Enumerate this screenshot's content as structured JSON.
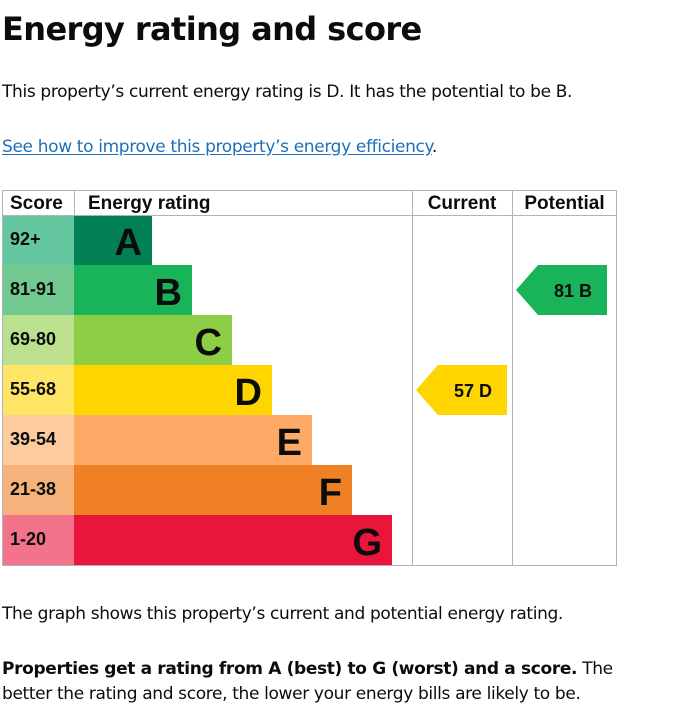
{
  "heading": "Energy rating and score",
  "intro": "This property’s current energy rating is D. It has the potential to be B.",
  "improve_link": "See how to improve this property’s energy efficiency",
  "improve_link_suffix": ".",
  "graph_note": "The graph shows this property’s current and potential energy rating.",
  "ratings_bold": "Properties get a rating from A (best) to G (worst) and a score.",
  "ratings_rest": " The better the rating and score, the lower your energy bills are likely to be.",
  "chart_data": {
    "type": "bar",
    "headers": {
      "score": "Score",
      "rating": "Energy rating",
      "current": "Current",
      "potential": "Potential"
    },
    "bands": [
      {
        "letter": "A",
        "range": "92+",
        "color": "#008054",
        "score_bg": "#64c7a0"
      },
      {
        "letter": "B",
        "range": "81-91",
        "color": "#19b459",
        "score_bg": "#72c990"
      },
      {
        "letter": "C",
        "range": "69-80",
        "color": "#8dce46",
        "score_bg": "#bce18e"
      },
      {
        "letter": "D",
        "range": "55-68",
        "color": "#ffd500",
        "score_bg": "#ffe566"
      },
      {
        "letter": "E",
        "range": "39-54",
        "color": "#fcaa65",
        "score_bg": "#fdcb9e"
      },
      {
        "letter": "F",
        "range": "21-38",
        "color": "#ef8023",
        "score_bg": "#f5b27a"
      },
      {
        "letter": "G",
        "range": "1-20",
        "color": "#e9153b",
        "score_bg": "#f2738a"
      }
    ],
    "current": {
      "score": 57,
      "letter": "D",
      "label": "57  D",
      "color": "#ffd500",
      "text_color": "#0b0c0c"
    },
    "potential": {
      "score": 81,
      "letter": "B",
      "label": "81  B",
      "color": "#19b459",
      "text_color": "#0b0c0c"
    }
  }
}
